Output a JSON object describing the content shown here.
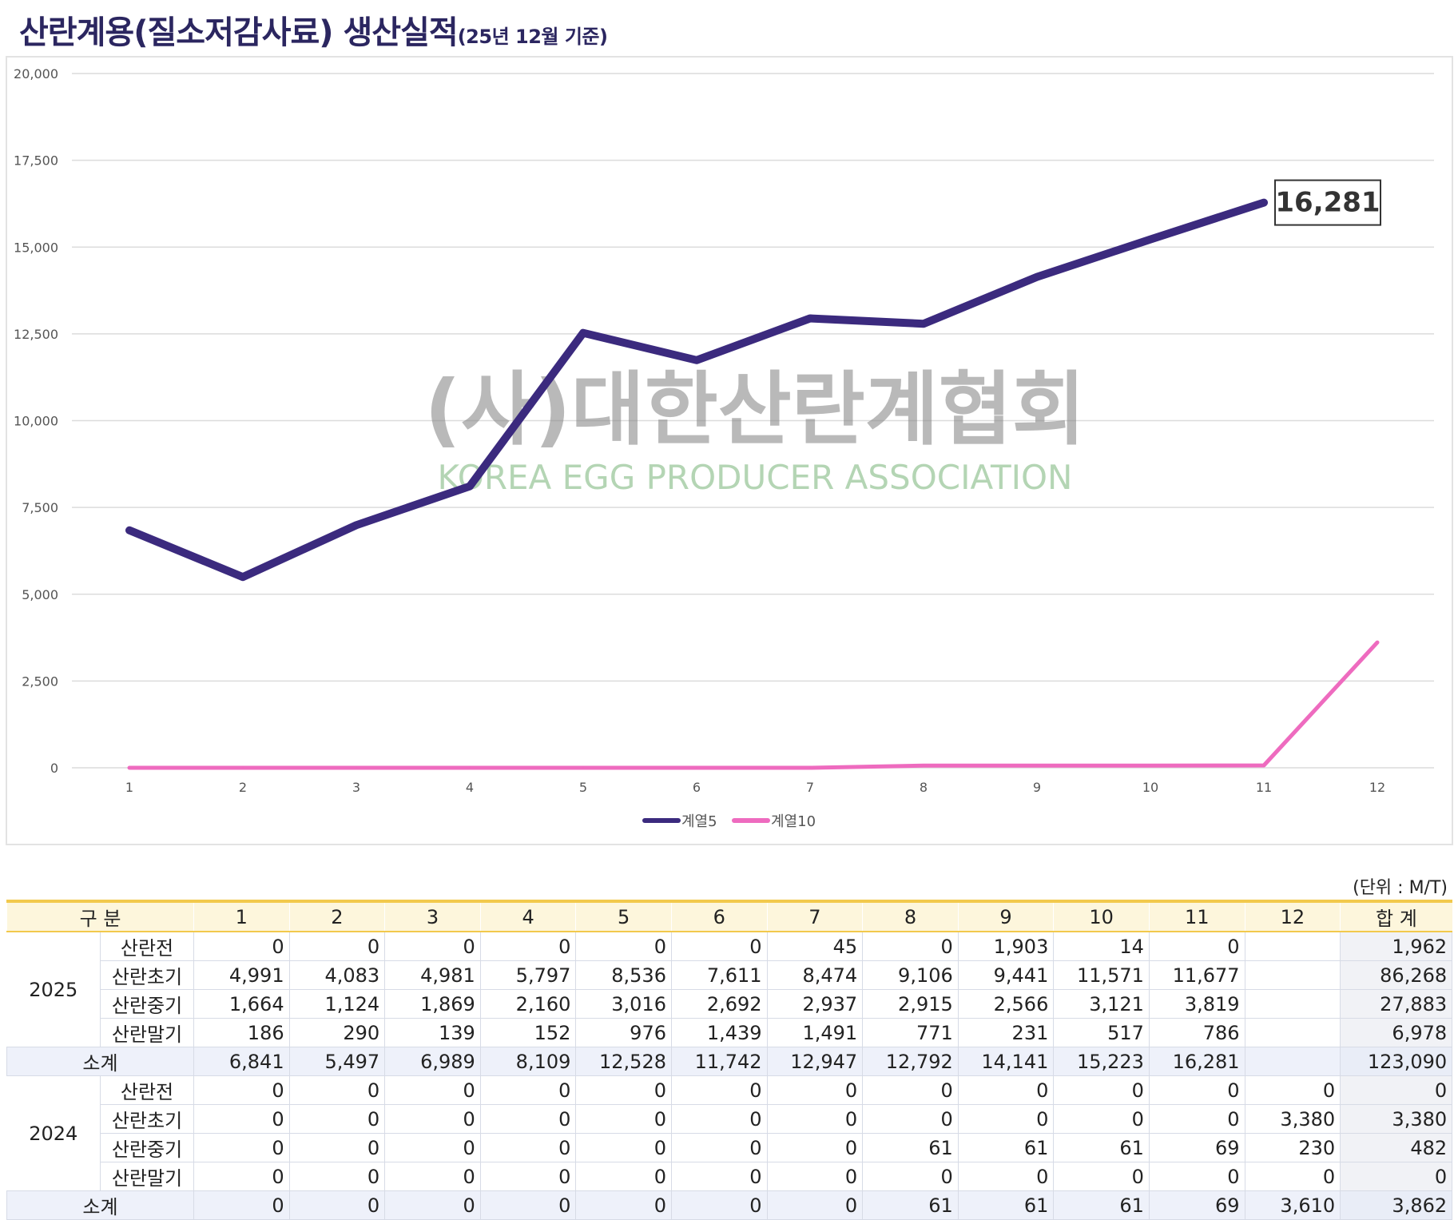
{
  "title": {
    "main": "산란계용(질소저감사료) 생산실적",
    "sub": "(25년 12월 기준)"
  },
  "chart_data": {
    "type": "line",
    "x": [
      "1",
      "2",
      "3",
      "4",
      "5",
      "6",
      "7",
      "8",
      "9",
      "10",
      "11",
      "12"
    ],
    "ylim": [
      0,
      20000
    ],
    "yticks": [
      "0",
      "2,500",
      "5,000",
      "7,500",
      "10,000",
      "12,500",
      "15,000",
      "17,500",
      "20,000"
    ],
    "grid": true,
    "legend_position": "bottom",
    "series": [
      {
        "name": "계열5",
        "color": "#3b2a7e",
        "values": [
          6841,
          5497,
          6989,
          8109,
          12528,
          11742,
          12947,
          12792,
          14141,
          15223,
          16281,
          null
        ]
      },
      {
        "name": "계열10",
        "color": "#ee6bbf",
        "values": [
          0,
          0,
          0,
          0,
          0,
          0,
          0,
          61,
          61,
          61,
          69,
          3610
        ]
      }
    ],
    "annotation": {
      "series": 0,
      "index": 10,
      "text": "16,281"
    }
  },
  "watermark": {
    "korean": "(사)대한산란계협회",
    "english": "KOREA EGG PRODUCER ASSOCIATION"
  },
  "table": {
    "unit": "(단위 : M/T)",
    "header_label": "구 분",
    "months": [
      "1",
      "2",
      "3",
      "4",
      "5",
      "6",
      "7",
      "8",
      "9",
      "10",
      "11",
      "12"
    ],
    "total_label": "합 계",
    "subtotal_label": "소계",
    "groups": [
      {
        "year": "2025",
        "rows": [
          {
            "category": "산란전",
            "values": [
              "0",
              "0",
              "0",
              "0",
              "0",
              "0",
              "45",
              "0",
              "1,903",
              "14",
              "0",
              ""
            ],
            "total": "1,962"
          },
          {
            "category": "산란초기",
            "values": [
              "4,991",
              "4,083",
              "4,981",
              "5,797",
              "8,536",
              "7,611",
              "8,474",
              "9,106",
              "9,441",
              "11,571",
              "11,677",
              ""
            ],
            "total": "86,268"
          },
          {
            "category": "산란중기",
            "values": [
              "1,664",
              "1,124",
              "1,869",
              "2,160",
              "3,016",
              "2,692",
              "2,937",
              "2,915",
              "2,566",
              "3,121",
              "3,819",
              ""
            ],
            "total": "27,883"
          },
          {
            "category": "산란말기",
            "values": [
              "186",
              "290",
              "139",
              "152",
              "976",
              "1,439",
              "1,491",
              "771",
              "231",
              "517",
              "786",
              ""
            ],
            "total": "6,978"
          }
        ],
        "subtotal": {
          "values": [
            "6,841",
            "5,497",
            "6,989",
            "8,109",
            "12,528",
            "11,742",
            "12,947",
            "12,792",
            "14,141",
            "15,223",
            "16,281",
            ""
          ],
          "total": "123,090"
        }
      },
      {
        "year": "2024",
        "rows": [
          {
            "category": "산란전",
            "values": [
              "0",
              "0",
              "0",
              "0",
              "0",
              "0",
              "0",
              "0",
              "0",
              "0",
              "0",
              "0"
            ],
            "total": "0"
          },
          {
            "category": "산란초기",
            "values": [
              "0",
              "0",
              "0",
              "0",
              "0",
              "0",
              "0",
              "0",
              "0",
              "0",
              "0",
              "3,380"
            ],
            "total": "3,380"
          },
          {
            "category": "산란중기",
            "values": [
              "0",
              "0",
              "0",
              "0",
              "0",
              "0",
              "0",
              "61",
              "61",
              "61",
              "69",
              "230"
            ],
            "total": "482"
          },
          {
            "category": "산란말기",
            "values": [
              "0",
              "0",
              "0",
              "0",
              "0",
              "0",
              "0",
              "0",
              "0",
              "0",
              "0",
              "0"
            ],
            "total": "0"
          }
        ],
        "subtotal": {
          "values": [
            "0",
            "0",
            "0",
            "0",
            "0",
            "0",
            "0",
            "61",
            "61",
            "61",
            "69",
            "3,610"
          ],
          "total": "3,862"
        }
      }
    ]
  }
}
